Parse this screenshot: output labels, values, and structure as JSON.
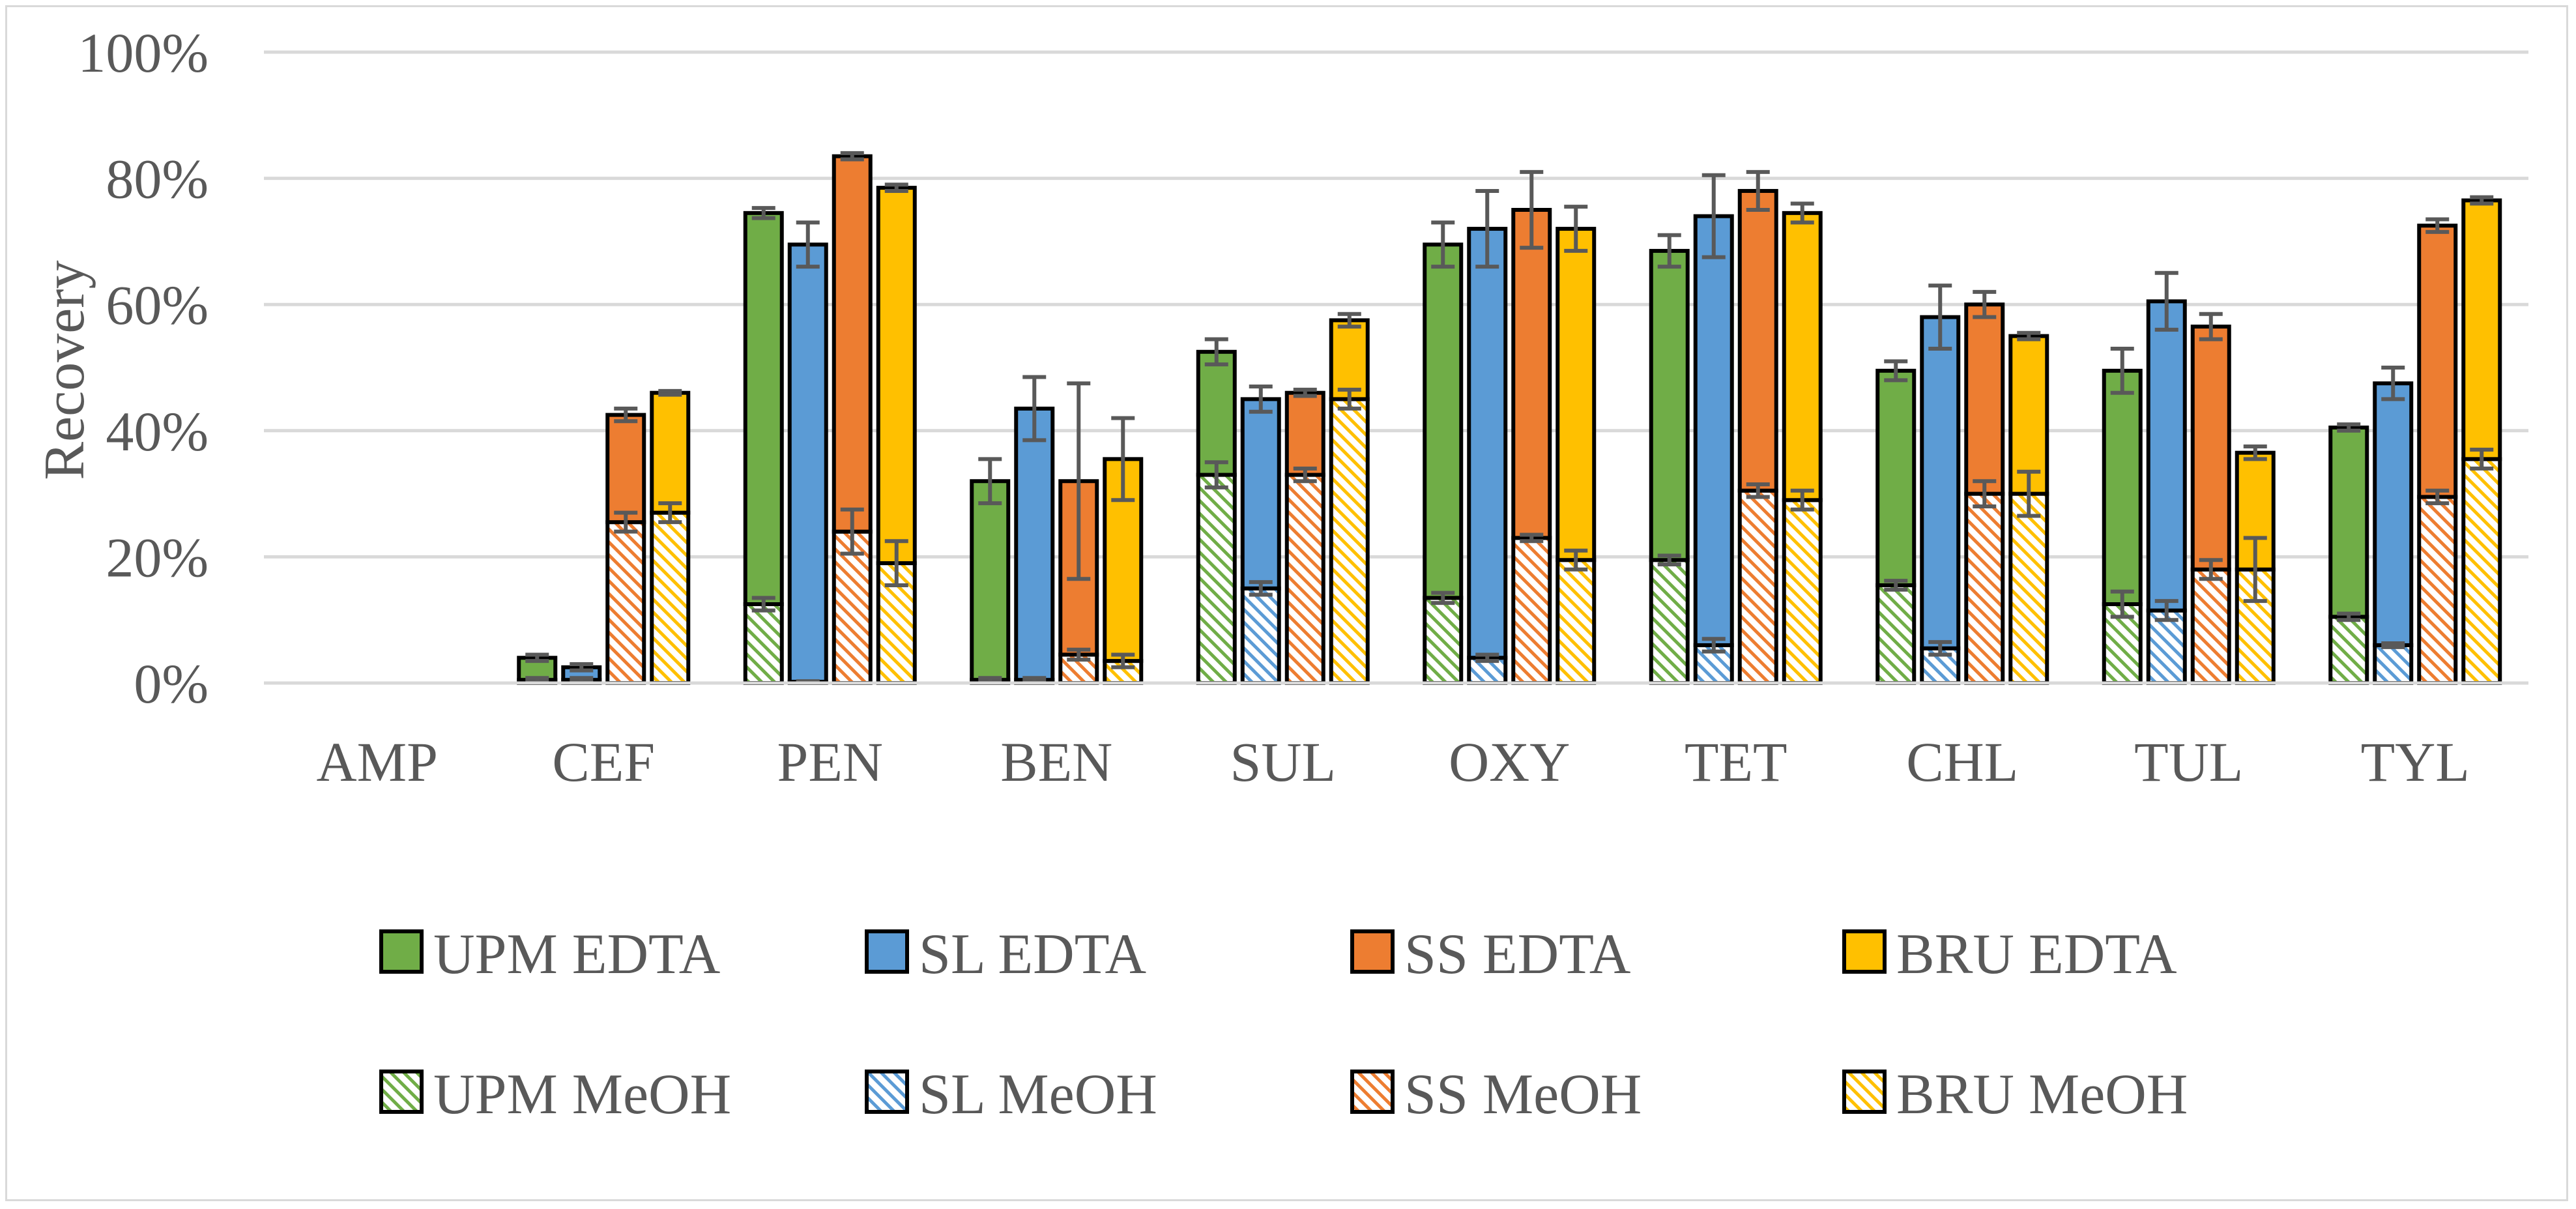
{
  "chart_data": {
    "type": "bar",
    "stacked": true,
    "title": "",
    "xlabel": "",
    "ylabel": "Recovery",
    "ylim": [
      0,
      100
    ],
    "yticks": [
      "0%",
      "20%",
      "40%",
      "60%",
      "80%",
      "100%"
    ],
    "categories": [
      "AMP",
      "CEF",
      "PEN",
      "BEN",
      "SUL",
      "OXY",
      "TET",
      "CHL",
      "TUL",
      "TYL"
    ],
    "colors": {
      "UPM": "#70ad47",
      "SL": "#5b9bd5",
      "SS": "#ed7d31",
      "BRU": "#ffc000"
    },
    "groups": [
      {
        "name": "UPM",
        "edta_label": "UPM EDTA",
        "meoh_label": "UPM MeOH",
        "meoh": [
          0,
          0.5,
          12.5,
          0.5,
          33,
          13.5,
          19.5,
          15.5,
          12.5,
          10.5
        ],
        "meoh_err": [
          0,
          0.3,
          1,
          0.3,
          2,
          0.8,
          0.7,
          0.7,
          2,
          0.5
        ],
        "total": [
          0,
          4,
          74.5,
          32,
          52.5,
          69.5,
          68.5,
          49.5,
          49.5,
          40.5
        ],
        "total_err": [
          0,
          0.5,
          0.8,
          3.5,
          2,
          3.5,
          2.5,
          1.5,
          3.5,
          0.5
        ]
      },
      {
        "name": "SL",
        "edta_label": "SL EDTA",
        "meoh_label": "SL MeOH",
        "meoh": [
          0,
          0.5,
          0.2,
          0.5,
          15,
          4,
          6,
          5.5,
          11.5,
          6
        ],
        "meoh_err": [
          0,
          0.3,
          0.1,
          0.3,
          1,
          0.5,
          1,
          1,
          1.5,
          0.3
        ],
        "total": [
          0,
          2.5,
          69.5,
          43.5,
          45,
          72,
          74,
          58,
          60.5,
          47.5
        ],
        "total_err": [
          0,
          0.5,
          3.5,
          5,
          2,
          6,
          6.5,
          5,
          4.5,
          2.5
        ]
      },
      {
        "name": "SS",
        "edta_label": "SS EDTA",
        "meoh_label": "SS MeOH",
        "meoh": [
          0,
          25.5,
          24,
          4.5,
          33,
          23,
          30.5,
          30,
          18,
          29.5
        ],
        "meoh_err": [
          0,
          1.5,
          3.5,
          0.8,
          1,
          0.5,
          1,
          2,
          1.5,
          1
        ],
        "total": [
          0,
          42.5,
          83.5,
          32,
          46,
          75,
          78,
          60,
          56.5,
          72.5
        ],
        "total_err": [
          0,
          1,
          0.5,
          15.5,
          0.5,
          6,
          3,
          2,
          2,
          1
        ]
      },
      {
        "name": "BRU",
        "edta_label": "BRU EDTA",
        "meoh_label": "BRU MeOH",
        "meoh": [
          0,
          27,
          19,
          3.5,
          45,
          19.5,
          29,
          30,
          18,
          35.5
        ],
        "meoh_err": [
          0,
          1.5,
          3.5,
          1,
          1.5,
          1.5,
          1.5,
          3.5,
          5,
          1.5
        ],
        "total": [
          0,
          46,
          78.5,
          35.5,
          57.5,
          72,
          74.5,
          55,
          36.5,
          76.5
        ],
        "total_err": [
          0,
          0.3,
          0.5,
          6.5,
          1,
          3.5,
          1.5,
          0.5,
          1,
          0.5
        ]
      }
    ]
  }
}
